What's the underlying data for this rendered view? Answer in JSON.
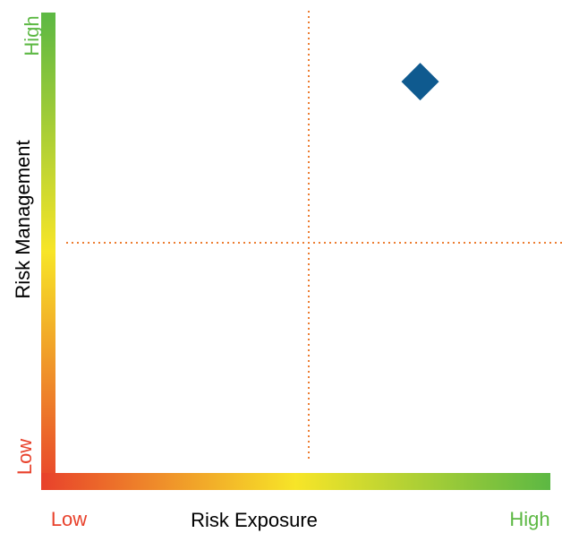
{
  "chart_data": {
    "type": "scatter",
    "title": "",
    "xlabel": "Risk Exposure",
    "ylabel": "Risk Management",
    "x_tick_labels": {
      "low": "Low",
      "high": "High"
    },
    "y_tick_labels": {
      "low": "Low",
      "high": "High"
    },
    "xlim": [
      0,
      1
    ],
    "ylim": [
      0,
      1
    ],
    "quadrant_dividers": {
      "x": 0.5,
      "y": 0.5
    },
    "series": [
      {
        "points": [
          {
            "x": 0.72,
            "y": 0.85
          }
        ],
        "marker": "diamond",
        "color": "#0f5a8f"
      }
    ],
    "grid": false,
    "legend": "none",
    "colors": {
      "low": "#e8412b",
      "mid": "#f7e528",
      "high": "#5cb843",
      "divider": "#ed7d31",
      "marker": "#0f5a8f"
    }
  }
}
